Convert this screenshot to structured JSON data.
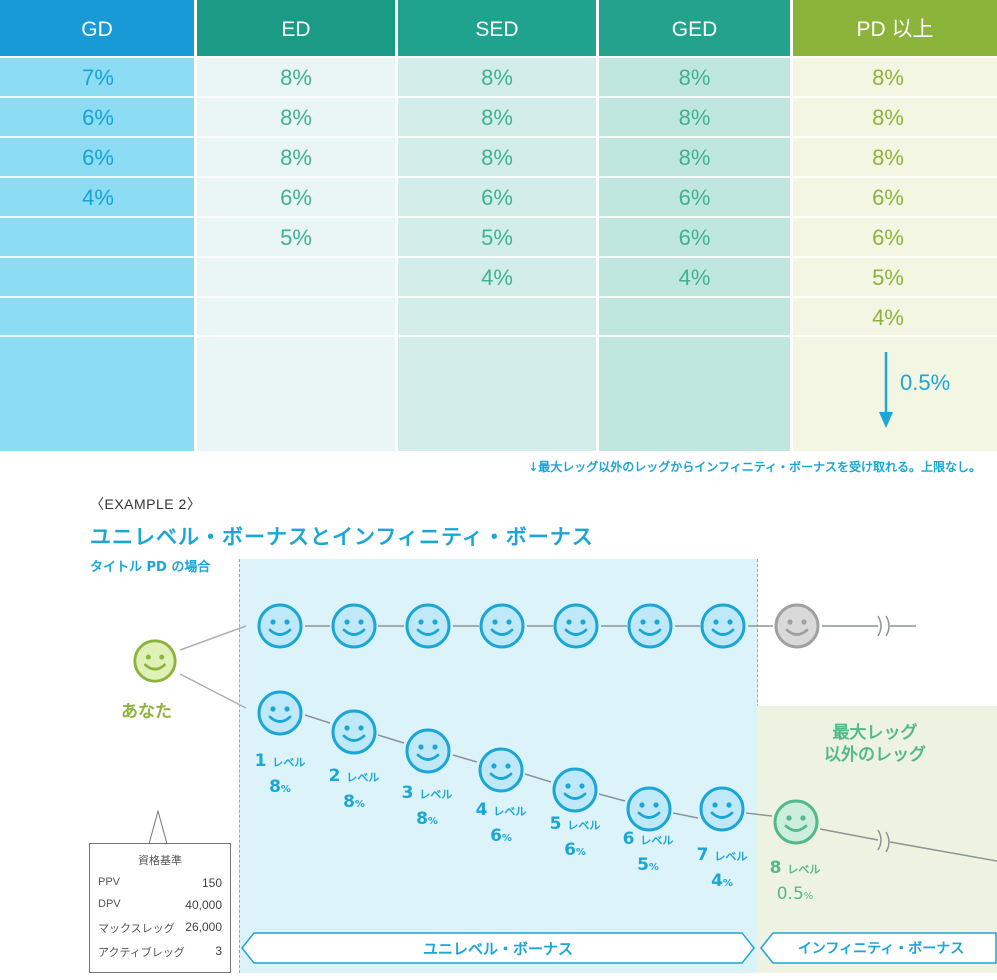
{
  "table": {
    "headers": [
      "GD",
      "ED",
      "SED",
      "GED",
      "PD 以上"
    ],
    "columns": [
      [
        "7%",
        "6%",
        "6%",
        "4%",
        "",
        "",
        ""
      ],
      [
        "8%",
        "8%",
        "8%",
        "6%",
        "5%",
        "",
        ""
      ],
      [
        "8%",
        "8%",
        "8%",
        "6%",
        "5%",
        "4%",
        ""
      ],
      [
        "8%",
        "8%",
        "8%",
        "6%",
        "6%",
        "4%",
        ""
      ],
      [
        "8%",
        "8%",
        "8%",
        "6%",
        "6%",
        "5%",
        "4%"
      ]
    ],
    "infinity_rate": "0.5%",
    "colors": {
      "header": [
        "#189ad6",
        "#1b9b85",
        "#1fa38f",
        "#23a38b",
        "#8cb43b"
      ],
      "body": [
        "#8cdcf4",
        "#eaf6f6",
        "#d3eeea",
        "#bfe6df",
        "#f4f6e4"
      ],
      "text": [
        "#15a3d8",
        "#3cb391",
        "#3cb391",
        "#3cb391",
        "#8cb43b"
      ]
    }
  },
  "note": "↓最大レッグ以外のレッグからインフィニティ・ボーナスを受け取れる。上限なし。",
  "example": {
    "label": "〈EXAMPLE 2〉",
    "title": "ユニレベル・ボーナスとインフィニティ・ボーナス",
    "subtitle": "タイトル PD の場合"
  },
  "diagram": {
    "you_label": "あなた",
    "max_leg_label_line1": "最大レッグ",
    "max_leg_label_line2": "以外のレッグ",
    "levels": [
      {
        "num": "1",
        "unit": "レベル",
        "rate": "8",
        "pct": "%"
      },
      {
        "num": "2",
        "unit": "レベル",
        "rate": "8",
        "pct": "%"
      },
      {
        "num": "3",
        "unit": "レベル",
        "rate": "8",
        "pct": "%"
      },
      {
        "num": "4",
        "unit": "レベル",
        "rate": "6",
        "pct": "%"
      },
      {
        "num": "5",
        "unit": "レベル",
        "rate": "6",
        "pct": "%"
      },
      {
        "num": "6",
        "unit": "レベル",
        "rate": "5",
        "pct": "%"
      },
      {
        "num": "7",
        "unit": "レベル",
        "rate": "4",
        "pct": "%"
      }
    ],
    "level8": {
      "num": "8",
      "unit": "レベル",
      "rate": "0.5",
      "pct": "%"
    },
    "unilevel_banner": "ユニレベル・ボーナス",
    "infinity_banner": "インフィニティ・ボーナス",
    "criteria": {
      "title": "資格基準",
      "rows": [
        {
          "label": "PPV",
          "value": "150"
        },
        {
          "label": "DPV",
          "value": "40,000"
        },
        {
          "label": "マックスレッグ",
          "value": "26,000"
        },
        {
          "label": "アクティブレッグ",
          "value": "3"
        }
      ]
    },
    "colors": {
      "unilevel_bg": "#dcf3fa",
      "infinity_bg": "#eef3e1",
      "smiley_blue": "#1aa6d6",
      "smiley_green": "#8cb43b",
      "smiley_teal": "#53b98a",
      "smiley_gray": "#a0a0a0"
    }
  }
}
